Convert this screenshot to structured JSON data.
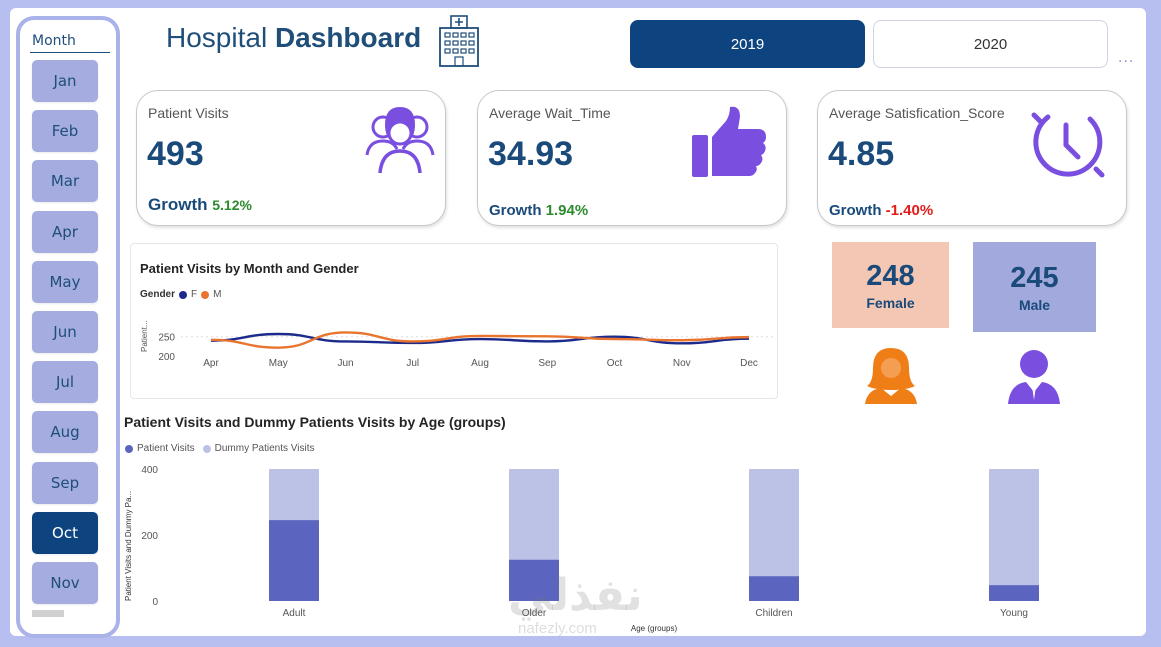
{
  "header": {
    "title_regular": "Hospital",
    "title_bold": "Dashboard",
    "icon": "hospital-building-icon"
  },
  "years": [
    {
      "label": "2019",
      "selected": true
    },
    {
      "label": "2020",
      "selected": false
    }
  ],
  "more_label": "...",
  "slicer": {
    "title": "Month",
    "months": [
      "Jan",
      "Feb",
      "Mar",
      "Apr",
      "May",
      "Jun",
      "Jul",
      "Aug",
      "Sep",
      "Oct",
      "Nov"
    ],
    "selected": "Oct"
  },
  "kpis": [
    {
      "label": "Patient Visits",
      "value": "493",
      "growth_label": "Growth",
      "growth": "5.12%",
      "trend": "positive",
      "icon": "patients-group-icon"
    },
    {
      "label": "Average Wait_Time",
      "value": "34.93",
      "growth_label": "Growth",
      "growth": "1.94%",
      "trend": "positive",
      "icon": "thumbs-up-icon"
    },
    {
      "label": "Average Satisfication_Score",
      "value": "4.85",
      "growth_label": "Growth",
      "growth": "-1.40%",
      "trend": "negative",
      "icon": "clock-icon"
    }
  ],
  "gender": {
    "female": {
      "value": "248",
      "label": "Female",
      "color": "#f4c7b5",
      "icon": "female-user-icon",
      "icon_color": "#f07e17"
    },
    "male": {
      "value": "245",
      "label": "Male",
      "color": "#a1a9dd",
      "icon": "male-user-icon",
      "icon_color": "#7a4fe0"
    }
  },
  "colors": {
    "navy": "#0d4480",
    "accent_purple": "#7a4fe0",
    "series_f": "#1c2a8c",
    "series_m": "#e8742e",
    "bar_dark": "#5b65bf",
    "bar_light": "#bcc2e6"
  },
  "chart_data": [
    {
      "type": "line",
      "title": "Patient Visits by Month and Gender",
      "legend_title": "Gender",
      "xlabel": "",
      "ylabel": "Patient...",
      "categories": [
        "Apr",
        "May",
        "Jun",
        "Jul",
        "Aug",
        "Sep",
        "Oct",
        "Nov",
        "Dec"
      ],
      "yticks": [
        200,
        250
      ],
      "ylim": [
        180,
        275
      ],
      "series": [
        {
          "name": "F",
          "values": [
            240,
            257,
            238,
            234,
            244,
            238,
            250,
            233,
            245
          ]
        },
        {
          "name": "M",
          "values": [
            242,
            222,
            261,
            238,
            252,
            251,
            244,
            241,
            249
          ]
        }
      ],
      "grid": false,
      "legend_position": "top-left"
    },
    {
      "type": "bar",
      "title": "Patient Visits and Dummy Patients Visits by Age (groups)",
      "xlabel": "Age (groups)",
      "ylabel": "Patient Visits and Dummy Pa...",
      "categories": [
        "Adult",
        "Older",
        "Children",
        "Young"
      ],
      "yticks": [
        0,
        200,
        400
      ],
      "ylim": [
        0,
        400
      ],
      "series": [
        {
          "name": "Patient Visits",
          "values": [
            245,
            125,
            75,
            48
          ]
        },
        {
          "name": "Dummy Patients Visits",
          "values": [
            400,
            400,
            400,
            400
          ]
        }
      ],
      "stacked_overlay": true,
      "grid": false,
      "legend_position": "top-left"
    }
  ],
  "watermark": {
    "text": "نفذلي",
    "sub": "nafezly.com"
  }
}
